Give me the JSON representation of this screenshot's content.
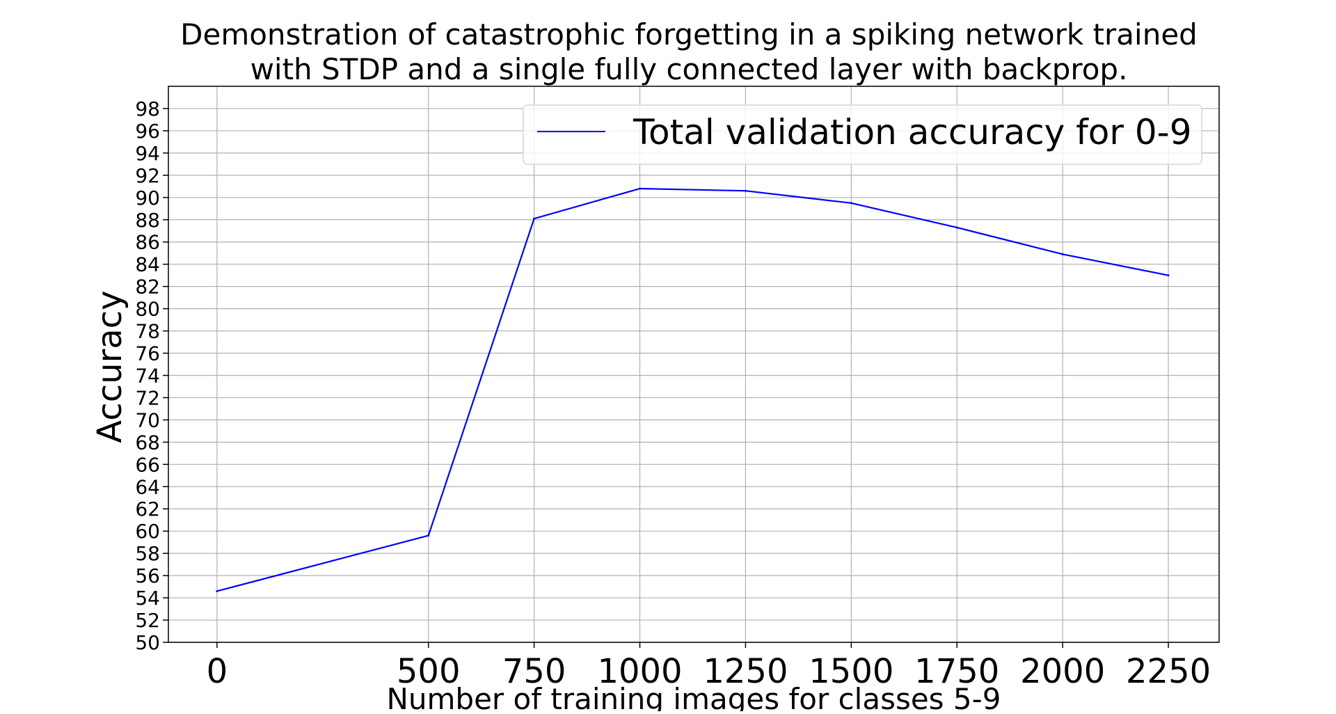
{
  "chart_data": {
    "type": "line",
    "title": "Demonstration of catastrophic forgetting in a spiking network trained with STDP and a single fully connected layer with backprop.",
    "title_lines": [
      "Demonstration of catastrophic forgetting in a spiking network trained",
      "with STDP and a single fully connected layer with backprop."
    ],
    "xlabel": "Number of training images for classes 5-9",
    "ylabel": "Accuracy",
    "x": [
      0,
      500,
      750,
      1000,
      1250,
      1500,
      1750,
      2000,
      2250
    ],
    "x_ticks": [
      "0",
      "500",
      "750",
      "1000",
      "1250",
      "1500",
      "1750",
      "2000",
      "2250"
    ],
    "y_ticks": [
      "50",
      "52",
      "54",
      "56",
      "58",
      "60",
      "62",
      "64",
      "66",
      "68",
      "70",
      "72",
      "74",
      "76",
      "78",
      "80",
      "82",
      "84",
      "86",
      "88",
      "90",
      "92",
      "94",
      "96",
      "98"
    ],
    "ylim": [
      50,
      100
    ],
    "xlim": [
      -115,
      2370
    ],
    "grid": true,
    "legend_position": "top-right",
    "series": [
      {
        "name": "Total validation accuracy for 0-9",
        "color": "#0000ff",
        "values": [
          54.6,
          59.6,
          88.1,
          90.8,
          90.6,
          89.5,
          87.3,
          84.9,
          83.0
        ]
      }
    ]
  }
}
